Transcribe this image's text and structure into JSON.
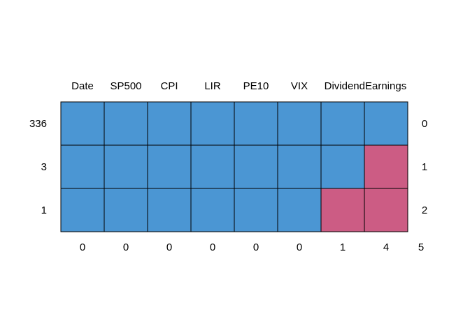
{
  "chart_data": {
    "type": "heatmap",
    "title": "",
    "columns": [
      "Date",
      "SP500",
      "CPI",
      "LIR",
      "PE10",
      "VIX",
      "Dividend",
      "Earnings"
    ],
    "rows": [
      {
        "frequency": "336",
        "missing_count": "0",
        "missing": [
          0,
          0,
          0,
          0,
          0,
          0,
          0,
          0
        ]
      },
      {
        "frequency": "3",
        "missing_count": "1",
        "missing": [
          0,
          0,
          0,
          0,
          0,
          0,
          0,
          1
        ]
      },
      {
        "frequency": "1",
        "missing_count": "2",
        "missing": [
          0,
          0,
          0,
          0,
          0,
          0,
          1,
          1
        ]
      }
    ],
    "column_missing_totals": [
      "0",
      "0",
      "0",
      "0",
      "0",
      "0",
      "1",
      "4"
    ],
    "total_missing": "5",
    "colors": {
      "observed": "#4B96D3",
      "missing": "#CC5C84",
      "border": "#000000"
    }
  }
}
